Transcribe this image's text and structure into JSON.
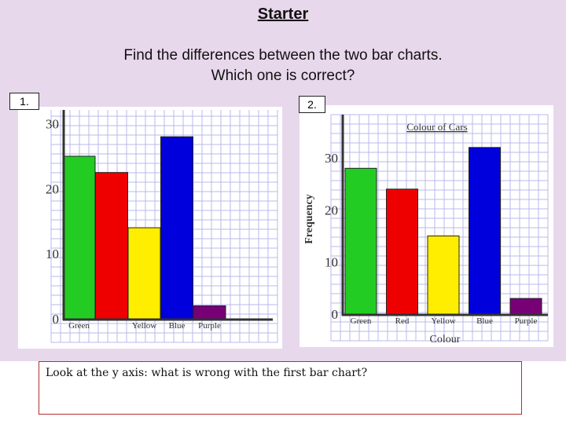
{
  "slide": {
    "title": "Starter",
    "instruction_line1": "Find the differences between the two bar charts.",
    "instruction_line2": "Which one is correct?",
    "question": "Look at the y axis: what is wrong with the first bar chart?"
  },
  "colors": {
    "background": "#e8d8ec",
    "grid": "#b8b8ec",
    "green": "#22cc22",
    "red": "#ee0000",
    "yellow": "#ffee00",
    "blue": "#0000dd",
    "purple": "#770077"
  },
  "chart_data": [
    {
      "label": "1.",
      "type": "bar",
      "title": "",
      "xlabel": "",
      "ylabel": "",
      "categories": [
        "Green",
        "",
        "Yellow",
        "Blue",
        "Purple"
      ],
      "values": [
        25,
        22.5,
        14,
        28,
        2
      ],
      "bar_colors": [
        "#22cc22",
        "#ee0000",
        "#ffee00",
        "#0000dd",
        "#770077"
      ],
      "yticks": [
        0,
        10,
        20,
        30
      ],
      "ylim": [
        0,
        32
      ],
      "grid": true
    },
    {
      "label": "2.",
      "type": "bar",
      "title": "Colour of Cars",
      "xlabel": "Colour",
      "ylabel": "Frequency",
      "categories": [
        "Green",
        "Red",
        "Yellow",
        "Blue",
        "Purple"
      ],
      "values": [
        28,
        24,
        15,
        32,
        3
      ],
      "bar_colors": [
        "#22cc22",
        "#ee0000",
        "#ffee00",
        "#0000dd",
        "#770077"
      ],
      "yticks": [
        0,
        10,
        20,
        30
      ],
      "ylim": [
        0,
        38
      ],
      "grid": true
    }
  ]
}
